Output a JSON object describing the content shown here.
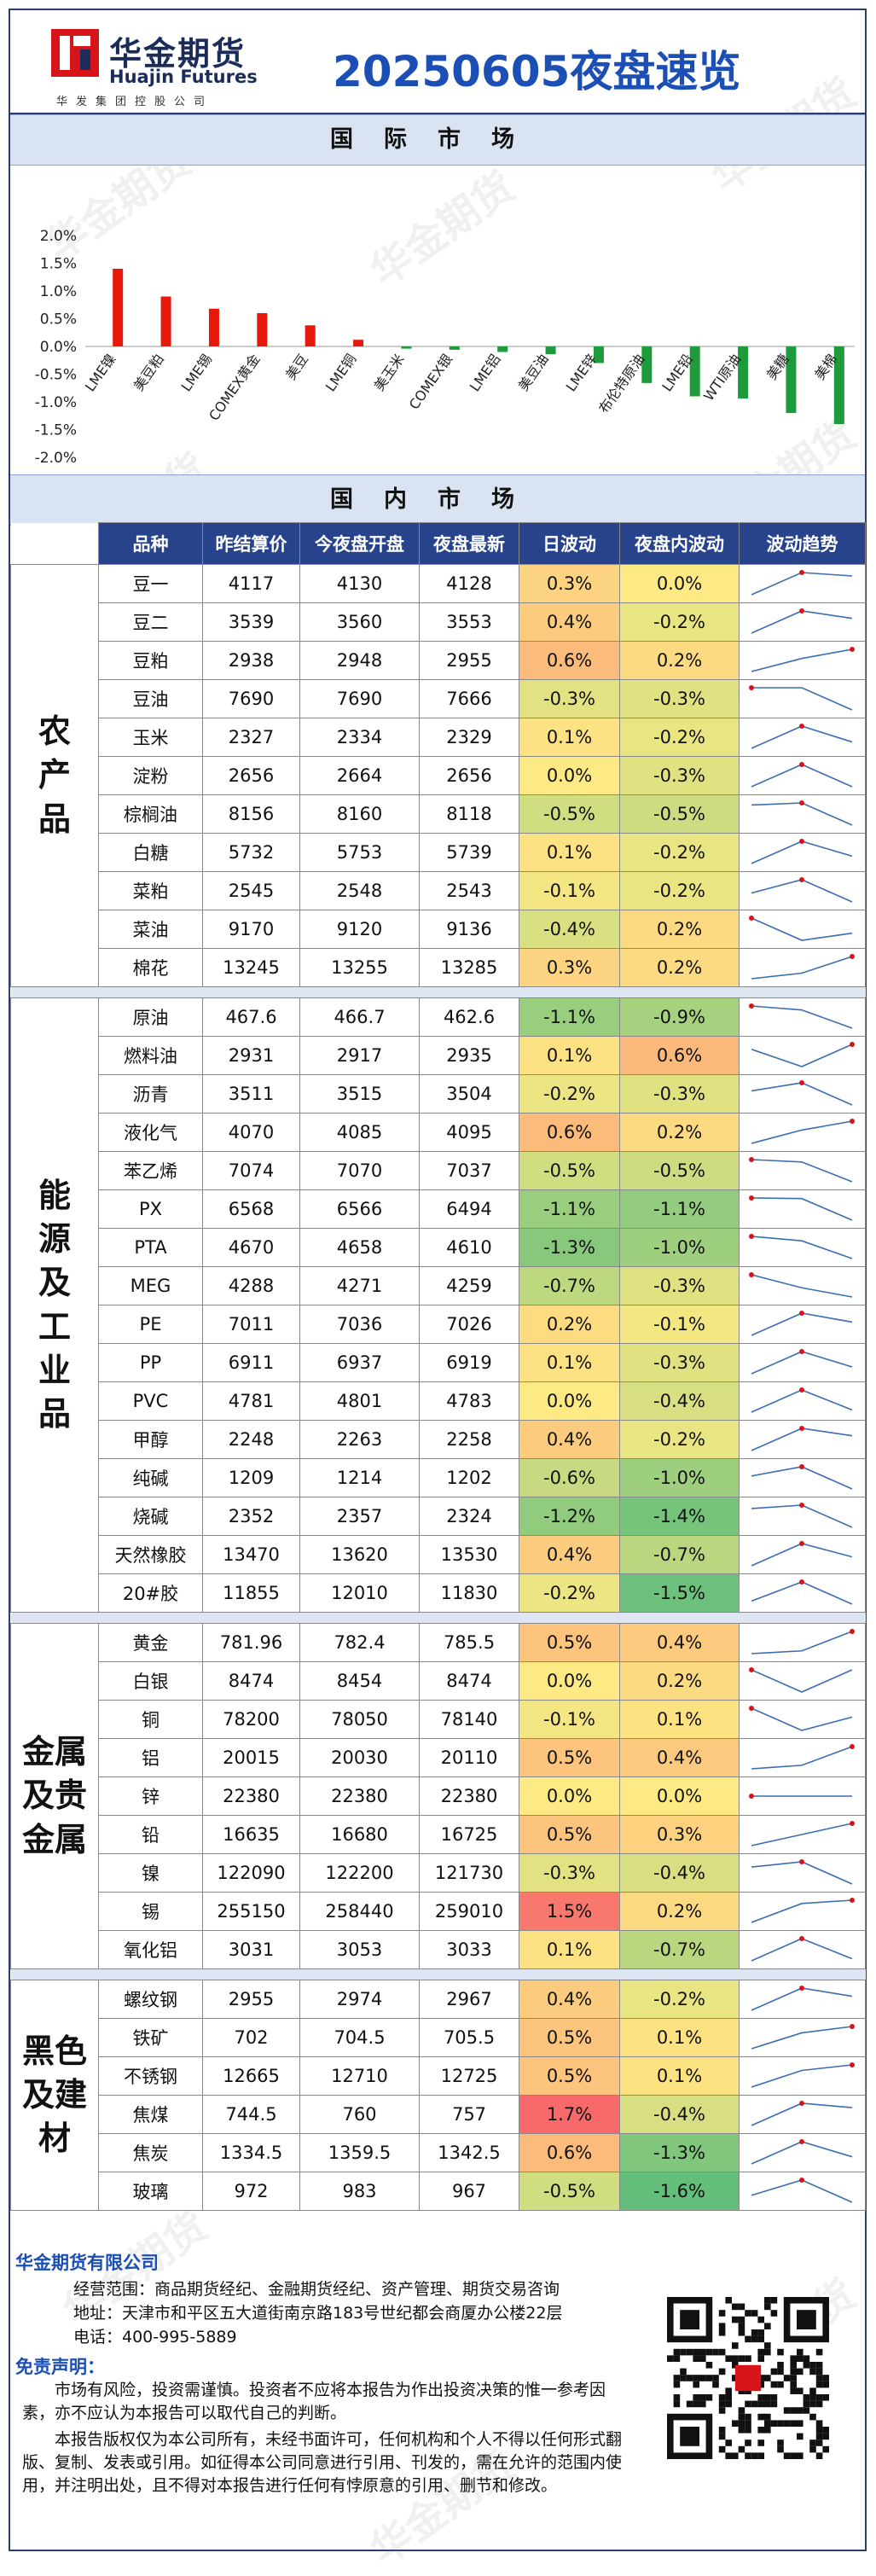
{
  "header": {
    "logo_cn": "华金期货",
    "logo_en": "Huajin Futures",
    "logo_group": "华发集团控股公司",
    "title": "20250605夜盘速览"
  },
  "sections": {
    "international": "国际市场",
    "domestic": "国内市场"
  },
  "watermark": "华金期货",
  "chart_data": {
    "type": "bar",
    "categories": [
      "LME镍",
      "美豆粕",
      "LME锡",
      "COMEX黄金",
      "美豆",
      "LME铜",
      "美玉米",
      "COMEX银",
      "LME铝",
      "美豆油",
      "LME锌",
      "布伦特原油",
      "LME铅",
      "WTI原油",
      "美糖",
      "美棉"
    ],
    "values": [
      1.4,
      0.9,
      0.68,
      0.6,
      0.38,
      0.12,
      -0.04,
      -0.06,
      -0.1,
      -0.14,
      -0.3,
      -0.66,
      -0.9,
      -0.94,
      -1.2,
      -1.4
    ],
    "ylim": [
      -2.0,
      2.0
    ],
    "yticks": [
      "2.0%",
      "1.5%",
      "1.0%",
      "0.5%",
      "0.0%",
      "-0.5%",
      "-1.0%",
      "-1.5%",
      "-2.0%"
    ],
    "colors": {
      "positive": "#e8180c",
      "negative": "#1e9b3a"
    },
    "grid": false
  },
  "table": {
    "headers": [
      "品种",
      "昨结算价",
      "今夜盘开盘",
      "夜盘最新",
      "日波动",
      "夜盘内波动",
      "波动趋势"
    ],
    "groups": [
      {
        "name": "农产品",
        "lines": [
          "农",
          "产",
          "品"
        ],
        "rows": [
          {
            "name": "豆一",
            "prev": "4117",
            "open": "4130",
            "last": "4128",
            "day": "0.3%",
            "night": "0.0%"
          },
          {
            "name": "豆二",
            "prev": "3539",
            "open": "3560",
            "last": "3553",
            "day": "0.4%",
            "night": "-0.2%"
          },
          {
            "name": "豆粕",
            "prev": "2938",
            "open": "2948",
            "last": "2955",
            "day": "0.6%",
            "night": "0.2%"
          },
          {
            "name": "豆油",
            "prev": "7690",
            "open": "7690",
            "last": "7666",
            "day": "-0.3%",
            "night": "-0.3%"
          },
          {
            "name": "玉米",
            "prev": "2327",
            "open": "2334",
            "last": "2329",
            "day": "0.1%",
            "night": "-0.2%"
          },
          {
            "name": "淀粉",
            "prev": "2656",
            "open": "2664",
            "last": "2656",
            "day": "0.0%",
            "night": "-0.3%"
          },
          {
            "name": "棕榈油",
            "prev": "8156",
            "open": "8160",
            "last": "8118",
            "day": "-0.5%",
            "night": "-0.5%"
          },
          {
            "name": "白糖",
            "prev": "5732",
            "open": "5753",
            "last": "5739",
            "day": "0.1%",
            "night": "-0.2%"
          },
          {
            "name": "菜粕",
            "prev": "2545",
            "open": "2548",
            "last": "2543",
            "day": "-0.1%",
            "night": "-0.2%"
          },
          {
            "name": "菜油",
            "prev": "9170",
            "open": "9120",
            "last": "9136",
            "day": "-0.4%",
            "night": "0.2%"
          },
          {
            "name": "棉花",
            "prev": "13245",
            "open": "13255",
            "last": "13285",
            "day": "0.3%",
            "night": "0.2%"
          }
        ]
      },
      {
        "name": "能源及工业品",
        "lines": [
          "能",
          "源",
          "及",
          "工",
          "业",
          "品"
        ],
        "rows": [
          {
            "name": "原油",
            "prev": "467.6",
            "open": "466.7",
            "last": "462.6",
            "day": "-1.1%",
            "night": "-0.9%"
          },
          {
            "name": "燃料油",
            "prev": "2931",
            "open": "2917",
            "last": "2935",
            "day": "0.1%",
            "night": "0.6%"
          },
          {
            "name": "沥青",
            "prev": "3511",
            "open": "3515",
            "last": "3504",
            "day": "-0.2%",
            "night": "-0.3%"
          },
          {
            "name": "液化气",
            "prev": "4070",
            "open": "4085",
            "last": "4095",
            "day": "0.6%",
            "night": "0.2%"
          },
          {
            "name": "苯乙烯",
            "prev": "7074",
            "open": "7070",
            "last": "7037",
            "day": "-0.5%",
            "night": "-0.5%"
          },
          {
            "name": "PX",
            "prev": "6568",
            "open": "6566",
            "last": "6494",
            "day": "-1.1%",
            "night": "-1.1%"
          },
          {
            "name": "PTA",
            "prev": "4670",
            "open": "4658",
            "last": "4610",
            "day": "-1.3%",
            "night": "-1.0%"
          },
          {
            "name": "MEG",
            "prev": "4288",
            "open": "4271",
            "last": "4259",
            "day": "-0.7%",
            "night": "-0.3%"
          },
          {
            "name": "PE",
            "prev": "7011",
            "open": "7036",
            "last": "7026",
            "day": "0.2%",
            "night": "-0.1%"
          },
          {
            "name": "PP",
            "prev": "6911",
            "open": "6937",
            "last": "6919",
            "day": "0.1%",
            "night": "-0.3%"
          },
          {
            "name": "PVC",
            "prev": "4781",
            "open": "4801",
            "last": "4783",
            "day": "0.0%",
            "night": "-0.4%"
          },
          {
            "name": "甲醇",
            "prev": "2248",
            "open": "2263",
            "last": "2258",
            "day": "0.4%",
            "night": "-0.2%"
          },
          {
            "name": "纯碱",
            "prev": "1209",
            "open": "1214",
            "last": "1202",
            "day": "-0.6%",
            "night": "-1.0%"
          },
          {
            "name": "烧碱",
            "prev": "2352",
            "open": "2357",
            "last": "2324",
            "day": "-1.2%",
            "night": "-1.4%"
          },
          {
            "name": "天然橡胶",
            "prev": "13470",
            "open": "13620",
            "last": "13530",
            "day": "0.4%",
            "night": "-0.7%"
          },
          {
            "name": "20#胶",
            "prev": "11855",
            "open": "12010",
            "last": "11830",
            "day": "-0.2%",
            "night": "-1.5%"
          }
        ]
      },
      {
        "name": "金属及贵金属",
        "lines": [
          "金属",
          "及贵",
          "金属"
        ],
        "rows": [
          {
            "name": "黄金",
            "prev": "781.96",
            "open": "782.4",
            "last": "785.5",
            "day": "0.5%",
            "night": "0.4%"
          },
          {
            "name": "白银",
            "prev": "8474",
            "open": "8454",
            "last": "8474",
            "day": "0.0%",
            "night": "0.2%"
          },
          {
            "name": "铜",
            "prev": "78200",
            "open": "78050",
            "last": "78140",
            "day": "-0.1%",
            "night": "0.1%"
          },
          {
            "name": "铝",
            "prev": "20015",
            "open": "20030",
            "last": "20110",
            "day": "0.5%",
            "night": "0.4%"
          },
          {
            "name": "锌",
            "prev": "22380",
            "open": "22380",
            "last": "22380",
            "day": "0.0%",
            "night": "0.0%"
          },
          {
            "name": "铅",
            "prev": "16635",
            "open": "16680",
            "last": "16725",
            "day": "0.5%",
            "night": "0.3%"
          },
          {
            "name": "镍",
            "prev": "122090",
            "open": "122200",
            "last": "121730",
            "day": "-0.3%",
            "night": "-0.4%"
          },
          {
            "name": "锡",
            "prev": "255150",
            "open": "258440",
            "last": "259010",
            "day": "1.5%",
            "night": "0.2%"
          },
          {
            "name": "氧化铝",
            "prev": "3031",
            "open": "3053",
            "last": "3033",
            "day": "0.1%",
            "night": "-0.7%"
          }
        ]
      },
      {
        "name": "黑色及建材",
        "lines": [
          "黑色",
          "及建",
          "材"
        ],
        "rows": [
          {
            "name": "螺纹钢",
            "prev": "2955",
            "open": "2974",
            "last": "2967",
            "day": "0.4%",
            "night": "-0.2%"
          },
          {
            "name": "铁矿",
            "prev": "702",
            "open": "704.5",
            "last": "705.5",
            "day": "0.5%",
            "night": "0.1%"
          },
          {
            "name": "不锈钢",
            "prev": "12665",
            "open": "12710",
            "last": "12725",
            "day": "0.5%",
            "night": "0.1%"
          },
          {
            "name": "焦煤",
            "prev": "744.5",
            "open": "760",
            "last": "757",
            "day": "1.7%",
            "night": "-0.4%"
          },
          {
            "name": "焦炭",
            "prev": "1334.5",
            "open": "1359.5",
            "last": "1342.5",
            "day": "0.6%",
            "night": "-1.3%"
          },
          {
            "name": "玻璃",
            "prev": "972",
            "open": "983",
            "last": "967",
            "day": "-0.5%",
            "night": "-1.6%"
          }
        ]
      }
    ]
  },
  "footer": {
    "company": "华金期货有限公司",
    "scope": "经营范围：商品期货经纪、金融期货经纪、资产管理、期货交易咨询",
    "address": "地址：天津市和平区五大道街南京路183号世纪都会商厦办公楼22层",
    "phone": "电话：400-995-5889",
    "disclaimer_title": "免责声明：",
    "disclaimer_1": "市场有风险，投资需谨慎。投资者不应将本报告为作出投资决策的惟一参考因素，亦不应认为本报告可以取代自己的判断。",
    "disclaimer_2": "本报告版权仅为本公司所有，未经书面许可，任何机构和个人不得以任何形式翻版、复制、发表或引用。如征得本公司同意进行引用、刊发的，需在允许的范围内使用，并注明出处，且不得对本报告进行任何有悖原意的引用、删节和修改。"
  }
}
